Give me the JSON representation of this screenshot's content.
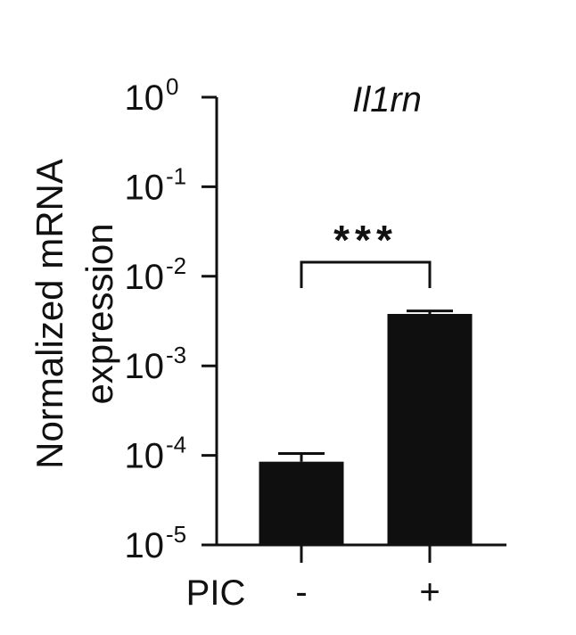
{
  "chart_data": {
    "type": "bar",
    "title": "Il1rn",
    "ylabel_lines": [
      "Normalized mRNA",
      "expression"
    ],
    "ylabel": "Normalized mRNA expression",
    "yscale": "log",
    "ylim": [
      1e-05,
      1
    ],
    "yticks": [
      {
        "base": "10",
        "exp": "0"
      },
      {
        "base": "10",
        "exp": "-1"
      },
      {
        "base": "10",
        "exp": "-2"
      },
      {
        "base": "10",
        "exp": "-3"
      },
      {
        "base": "10",
        "exp": "-4"
      },
      {
        "base": "10",
        "exp": "-5"
      }
    ],
    "xlabel": "PIC",
    "categories": [
      "-",
      "+"
    ],
    "values": [
      8.5e-05,
      0.0038
    ],
    "error_upper": [
      0.000105,
      0.0041
    ],
    "significance": "***",
    "bar_color": "#0f0f0f",
    "axis_color": "#111111"
  }
}
